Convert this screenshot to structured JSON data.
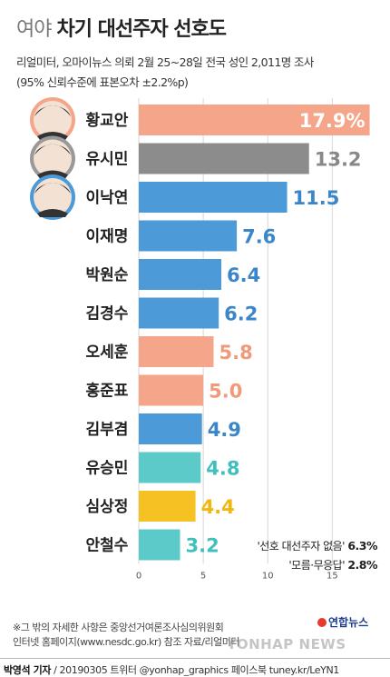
{
  "header": {
    "title_prefix": "여야",
    "title_main": "차기 대선주자 선호도",
    "subtitle1": "리얼미터, 오마이뉴스 의뢰 2월 25~28일 전국 성인 2,011명 조사",
    "subtitle2": "(95% 신뢰수준에 표본오차 ±2.2%p)"
  },
  "chart_data": {
    "type": "bar",
    "orientation": "horizontal",
    "categories": [
      "황교안",
      "유시민",
      "이낙연",
      "이재명",
      "박원순",
      "김경수",
      "오세훈",
      "홍준표",
      "김부겸",
      "유승민",
      "심상정",
      "안철수"
    ],
    "values": [
      17.9,
      13.2,
      11.5,
      7.6,
      6.4,
      6.2,
      5.8,
      5.0,
      4.9,
      4.8,
      4.4,
      3.2
    ],
    "value_labels": [
      "17.9%",
      "13.2",
      "11.5",
      "7.6",
      "6.4",
      "6.2",
      "5.8",
      "5.0",
      "4.9",
      "4.8",
      "4.4",
      "3.2"
    ],
    "bar_colors": [
      "#f4a58a",
      "#8c8c8c",
      "#4d9ad8",
      "#4d9ad8",
      "#4d9ad8",
      "#4d9ad8",
      "#f4a58a",
      "#f4a58a",
      "#4d9ad8",
      "#5ccac8",
      "#f6c223",
      "#5ccac8"
    ],
    "label_colors": [
      "#ffffff",
      "#888888",
      "#3a86c8",
      "#3a86c8",
      "#3a86c8",
      "#3a86c8",
      "#f09a7a",
      "#f09a7a",
      "#3a86c8",
      "#40bfbd",
      "#f2b70f",
      "#40bfbd"
    ],
    "xlim": [
      0,
      18
    ],
    "xticks": [
      0,
      5,
      10,
      15
    ],
    "grid": true,
    "photos": [
      "황교안",
      "유시민",
      "이낙연"
    ]
  },
  "notes": {
    "none_label": "'선호 대선주자 없음'",
    "none_value": "6.3%",
    "dunno_label": "'모름·무응답'",
    "dunno_value": "2.8%"
  },
  "footnote": {
    "line1": "※그 밖의 자세한 사항은 중앙선거여론조사심의위원회",
    "line2": "인터넷 홈페이지(www.nesdc.go.kr) 참조",
    "source": "자료/리얼미터"
  },
  "watermark": "YONHAP NEWS",
  "logo": "연합뉴스",
  "footer": {
    "reporter": "박영석 기자",
    "meta": "/ 20190305 트위터 @yonhap_graphics 페이스북 tuney.kr/LeYN1"
  }
}
